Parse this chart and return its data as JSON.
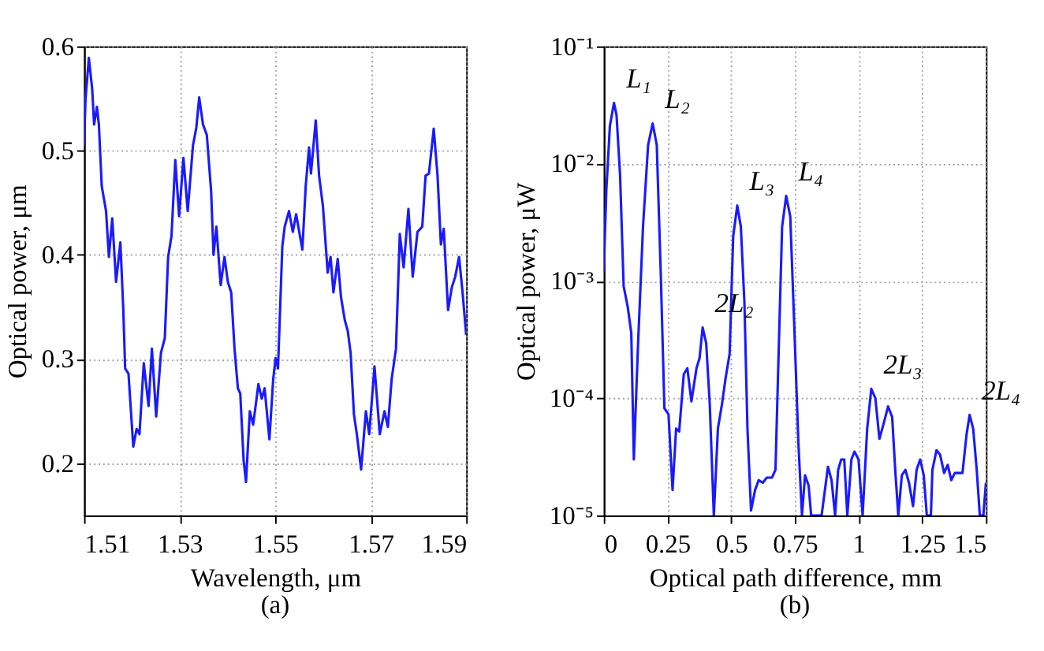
{
  "chart_data": [
    {
      "type": "line",
      "title": "(a)",
      "xlabel": "Wavelength, μm",
      "ylabel": "Optical power, μm",
      "xlim": [
        1.51,
        1.59
      ],
      "xticks": [
        1.51,
        1.53,
        1.55,
        1.57,
        1.59
      ],
      "ylim": [
        0.15,
        0.6
      ],
      "yticks": [
        0.2,
        0.3,
        0.4,
        0.5,
        0.6
      ],
      "grid": true,
      "legend": false,
      "series": [
        {
          "color": "#1a1aff",
          "x": [
            1.51,
            1.5103,
            1.511,
            1.5117,
            1.5121,
            1.5127,
            1.5131,
            1.5137,
            1.5146,
            1.5152,
            1.5159,
            1.5167,
            1.5176,
            1.5182,
            1.5186,
            1.5193,
            1.5203,
            1.521,
            1.5216,
            1.5225,
            1.5235,
            1.5242,
            1.5251,
            1.5261,
            1.5269,
            1.5276,
            1.5283,
            1.5291,
            1.5299,
            1.5308,
            1.5317,
            1.5328,
            1.5335,
            1.5341,
            1.5349,
            1.5357,
            1.5366,
            1.5371,
            1.5377,
            1.5386,
            1.5394,
            1.5401,
            1.5408,
            1.5415,
            1.5422,
            1.5427,
            1.5434,
            1.5439,
            1.5447,
            1.5454,
            1.5465,
            1.5472,
            1.5478,
            1.5488,
            1.5496,
            1.5501,
            1.5506,
            1.5515,
            1.552,
            1.5529,
            1.5537,
            1.5544,
            1.5552,
            1.5557,
            1.5564,
            1.5571,
            1.5575,
            1.5585,
            1.5592,
            1.56,
            1.561,
            1.5616,
            1.5622,
            1.5631,
            1.5638,
            1.5646,
            1.5652,
            1.5658,
            1.5665,
            1.5671,
            1.568,
            1.569,
            1.5697,
            1.5708,
            1.5719,
            1.5729,
            1.5736,
            1.5744,
            1.5753,
            1.5761,
            1.5769,
            1.5779,
            1.5788,
            1.5798,
            1.5808,
            1.5815,
            1.5822,
            1.5832,
            1.584,
            1.5847,
            1.5853,
            1.5862,
            1.587,
            1.5877,
            1.5885,
            1.5892,
            1.59
          ],
          "values": [
            0.505,
            0.549,
            0.589,
            0.559,
            0.525,
            0.542,
            0.525,
            0.466,
            0.442,
            0.398,
            0.435,
            0.374,
            0.412,
            0.349,
            0.291,
            0.286,
            0.216,
            0.233,
            0.228,
            0.296,
            0.255,
            0.31,
            0.245,
            0.306,
            0.32,
            0.398,
            0.418,
            0.491,
            0.437,
            0.493,
            0.442,
            0.505,
            0.522,
            0.551,
            0.525,
            0.515,
            0.461,
            0.4,
            0.427,
            0.371,
            0.398,
            0.374,
            0.364,
            0.31,
            0.272,
            0.267,
            0.203,
            0.182,
            0.25,
            0.237,
            0.276,
            0.262,
            0.272,
            0.223,
            0.281,
            0.301,
            0.291,
            0.408,
            0.427,
            0.442,
            0.422,
            0.439,
            0.418,
            0.405,
            0.466,
            0.503,
            0.478,
            0.529,
            0.476,
            0.447,
            0.383,
            0.398,
            0.364,
            0.396,
            0.359,
            0.337,
            0.327,
            0.306,
            0.247,
            0.228,
            0.194,
            0.25,
            0.228,
            0.293,
            0.228,
            0.25,
            0.235,
            0.281,
            0.31,
            0.42,
            0.388,
            0.444,
            0.379,
            0.422,
            0.427,
            0.476,
            0.478,
            0.521,
            0.476,
            0.41,
            0.425,
            0.347,
            0.369,
            0.379,
            0.398,
            0.366,
            0.323
          ]
        }
      ]
    },
    {
      "type": "line",
      "title": "(b)",
      "xlabel": "Optical path difference, mm",
      "ylabel": "Optical power, μW",
      "xlim": [
        0,
        1.5
      ],
      "xticks": [
        0,
        0.25,
        0.5,
        0.75,
        1,
        1.25,
        1.5
      ],
      "ylim": [
        1e-05,
        0.1
      ],
      "log": true,
      "grid": true,
      "legend": false,
      "yticks": [
        {
          "value": 1e-05,
          "label": "10⁻⁵"
        },
        {
          "value": 0.0001,
          "label": "10⁻⁴"
        },
        {
          "value": 0.001,
          "label": "10⁻³"
        },
        {
          "value": 0.01,
          "label": "10⁻²"
        },
        {
          "value": 0.1,
          "label": "10⁻¹"
        }
      ],
      "annotations": [
        {
          "text": "L₁",
          "x": 0.04,
          "y": 0.033
        },
        {
          "text": "L₂",
          "x": 0.192,
          "y": 0.022
        },
        {
          "text": "2L₂",
          "x": 0.388,
          "y": 0.0004
        },
        {
          "text": "L₃",
          "x": 0.524,
          "y": 0.0044
        },
        {
          "text": "L₄",
          "x": 0.716,
          "y": 0.0053
        },
        {
          "text": "2L₃",
          "x": 1.05,
          "y": 0.00012
        },
        {
          "text": "2L₄",
          "x": 1.436,
          "y": 7.2e-05
        }
      ],
      "series": [
        {
          "color": "#1a1aff",
          "x": [
            0,
            0.01,
            0.024,
            0.04,
            0.05,
            0.064,
            0.078,
            0.094,
            0.108,
            0.118,
            0.134,
            0.154,
            0.174,
            0.192,
            0.208,
            0.224,
            0.238,
            0.254,
            0.27,
            0.284,
            0.296,
            0.314,
            0.328,
            0.344,
            0.364,
            0.376,
            0.388,
            0.402,
            0.416,
            0.432,
            0.448,
            0.464,
            0.478,
            0.494,
            0.508,
            0.524,
            0.538,
            0.552,
            0.564,
            0.578,
            0.594,
            0.608,
            0.624,
            0.64,
            0.66,
            0.674,
            0.688,
            0.7,
            0.716,
            0.732,
            0.748,
            0.764,
            0.778,
            0.79,
            0.804,
            0.814,
            0.83,
            0.855,
            0.88,
            0.894,
            0.908,
            0.92,
            0.932,
            0.944,
            0.956,
            0.972,
            0.984,
            1.0,
            1.016,
            1.034,
            1.05,
            1.066,
            1.082,
            1.098,
            1.116,
            1.132,
            1.144,
            1.156,
            1.17,
            1.184,
            1.198,
            1.214,
            1.228,
            1.242,
            1.256,
            1.268,
            1.284,
            1.29,
            1.306,
            1.32,
            1.336,
            1.35,
            1.364,
            1.378,
            1.392,
            1.408,
            1.424,
            1.436,
            1.45,
            1.464,
            1.476,
            1.49,
            1.5
          ],
          "values": [
            0.0012,
            0.0059,
            0.021,
            0.033,
            0.026,
            0.008,
            0.0009,
            0.0006,
            0.00036,
            3e-05,
            0.00027,
            0.0029,
            0.0144,
            0.022,
            0.0144,
            0.0011,
            8.2e-05,
            7.3e-05,
            1.65e-05,
            5.5e-05,
            5.2e-05,
            0.00016,
            0.00018,
            9.4e-05,
            0.00018,
            0.00022,
            0.0004,
            0.000295,
            8.9e-05,
            1e-05,
            5.5e-05,
            8.9e-05,
            0.000147,
            0.00024,
            0.0024,
            0.0044,
            0.0029,
            0.00066,
            5.5e-05,
            1.1e-05,
            1.65e-05,
            2e-05,
            1.9e-05,
            2.1e-05,
            2.1e-05,
            2.45e-05,
            0.00033,
            0.0029,
            0.0053,
            0.00355,
            0.0004,
            4.1e-05,
            1e-05,
            2.2e-05,
            1.8e-05,
            1e-05,
            1e-05,
            1e-05,
            2.6e-05,
            2e-05,
            1e-05,
            2.45e-05,
            3e-05,
            3e-05,
            1e-05,
            3e-05,
            3.5e-05,
            3e-05,
            1e-05,
            5.5e-05,
            0.00012,
            0.0001,
            4.5e-05,
            6e-05,
            8.5e-05,
            6.9e-05,
            2.45e-05,
            1e-05,
            2.2e-05,
            2.45e-05,
            1.9e-05,
            1.2e-05,
            2.45e-05,
            3e-05,
            2.2e-05,
            1e-05,
            1e-05,
            2.45e-05,
            3.6e-05,
            3.3e-05,
            2.3e-05,
            2.7e-05,
            2e-05,
            2.3e-05,
            2.3e-05,
            2.3e-05,
            4.9e-05,
            7.2e-05,
            5.5e-05,
            2.45e-05,
            1e-05,
            1e-05,
            1.9e-05
          ]
        }
      ]
    }
  ]
}
